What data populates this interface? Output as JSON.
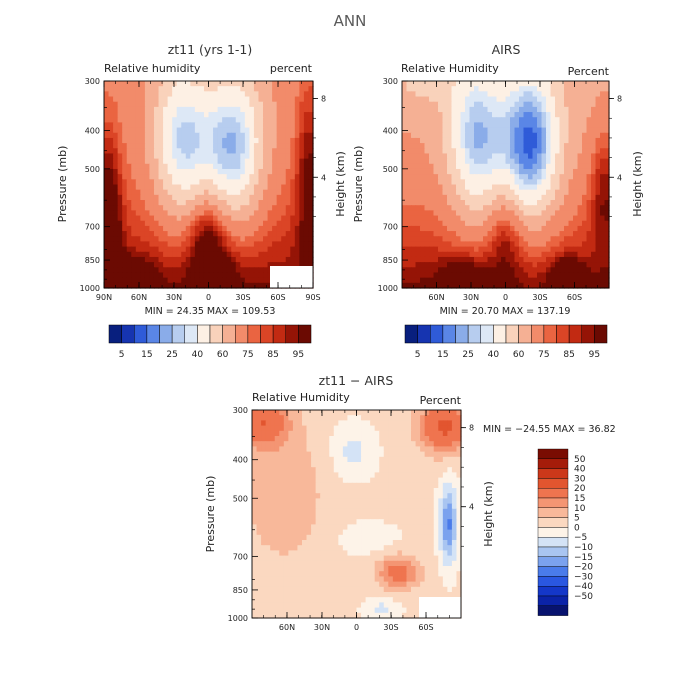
{
  "super_title": "ANN",
  "colors": {
    "full_scale": [
      "#081f7e",
      "#1634b0",
      "#2f5bd8",
      "#5a86e6",
      "#8aace9",
      "#b7cdef",
      "#dde8f6",
      "#fdf0e4",
      "#f9d2bb",
      "#f5b094",
      "#f28b6a",
      "#ea6441",
      "#db4526",
      "#c22a12",
      "#951406",
      "#6b0a02"
    ],
    "diff_scale": [
      "#08136f",
      "#0b23a8",
      "#1437c9",
      "#2a57e1",
      "#4a7bea",
      "#7ba2ee",
      "#a9c5f1",
      "#d4e3f6",
      "#fdf3e8",
      "#fbd8c0",
      "#f8b89a",
      "#f49573",
      "#ef744f",
      "#e2552f",
      "#cc381a",
      "#a51c0a",
      "#7a0c02"
    ]
  },
  "chart_data": [
    {
      "type": "heatmap",
      "title": "zt11 (yrs 1-1)",
      "left_label": "Relative humidity",
      "right_label": "percent",
      "xlabel": "",
      "ylabel": "Pressure (mb)",
      "ylabel_right": "Height (km)",
      "x_ticks": [
        "90N",
        "60N",
        "30N",
        "0",
        "30S",
        "60S",
        "90S"
      ],
      "y_ticks": [
        "300",
        "400",
        "500",
        "700",
        "850",
        "1000"
      ],
      "height_ticks": [
        "8",
        "4"
      ],
      "min_max": "MIN =  24.35   MAX = 109.53",
      "colorbar_levels": [
        "5",
        "15",
        "25",
        "40",
        "60",
        "75",
        "85",
        "95"
      ],
      "xlim": [
        90,
        -90
      ],
      "ylim": [
        1000,
        300
      ]
    },
    {
      "type": "heatmap",
      "title": "AIRS",
      "left_label": "Relative Humidity",
      "right_label": "Percent",
      "xlabel": "",
      "ylabel": "Pressure (mb)",
      "ylabel_right": "Height (km)",
      "x_ticks": [
        "60N",
        "30N",
        "0",
        "30S",
        "60S"
      ],
      "y_ticks": [
        "300",
        "400",
        "500",
        "700",
        "850",
        "1000"
      ],
      "height_ticks": [
        "8",
        "4"
      ],
      "min_max": "MIN =  20.70   MAX = 137.19",
      "colorbar_levels": [
        "5",
        "15",
        "25",
        "40",
        "60",
        "75",
        "85",
        "95"
      ],
      "xlim": [
        90,
        -90
      ],
      "ylim": [
        1000,
        300
      ]
    },
    {
      "type": "heatmap",
      "title": "zt11 − AIRS",
      "left_label": "Relative Humidity",
      "right_label": "Percent",
      "xlabel": "",
      "ylabel": "Pressure (mb)",
      "ylabel_right": "Height (km)",
      "x_ticks": [
        "60N",
        "30N",
        "0",
        "30S",
        "60S"
      ],
      "y_ticks": [
        "300",
        "400",
        "500",
        "700",
        "850",
        "1000"
      ],
      "height_ticks": [
        "8",
        "4"
      ],
      "min_max": "MIN = −24.55   MAX =  36.82",
      "colorbar_levels": [
        "50",
        "40",
        "30",
        "20",
        "15",
        "10",
        "5",
        "0",
        "−5",
        "−10",
        "−15",
        "−20",
        "−30",
        "−40",
        "−50"
      ],
      "xlim": [
        90,
        -90
      ],
      "ylim": [
        1000,
        300
      ]
    }
  ]
}
